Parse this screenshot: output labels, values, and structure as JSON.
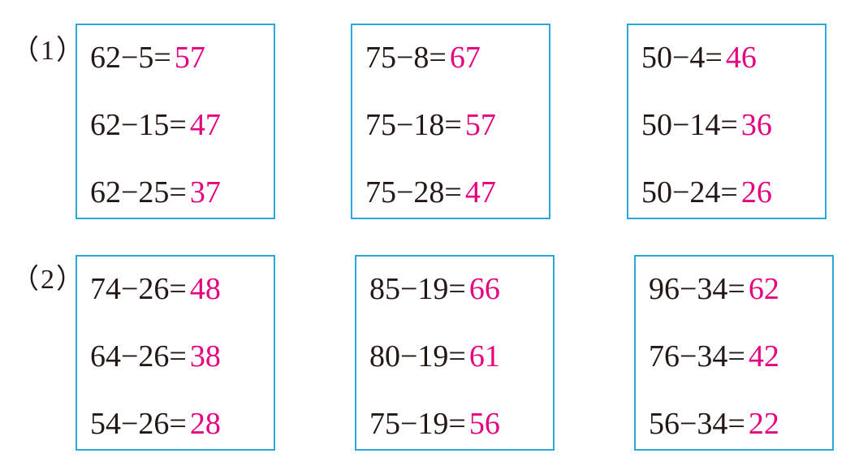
{
  "accent_colors": {
    "border": "#29a8e0",
    "answer": "#e4007f"
  },
  "groups": [
    {
      "label": "（1）",
      "boxes": [
        {
          "items": [
            {
              "q": "62−5=",
              "a": "57"
            },
            {
              "q": "62−15=",
              "a": "47"
            },
            {
              "q": "62−25=",
              "a": "37"
            }
          ]
        },
        {
          "items": [
            {
              "q": "75−8=",
              "a": "67"
            },
            {
              "q": "75−18=",
              "a": "57"
            },
            {
              "q": "75−28=",
              "a": "47"
            }
          ]
        },
        {
          "items": [
            {
              "q": "50−4=",
              "a": "46"
            },
            {
              "q": "50−14=",
              "a": "36"
            },
            {
              "q": "50−24=",
              "a": "26"
            }
          ]
        }
      ]
    },
    {
      "label": "（2）",
      "boxes": [
        {
          "items": [
            {
              "q": "74−26=",
              "a": "48"
            },
            {
              "q": "64−26=",
              "a": "38"
            },
            {
              "q": "54−26=",
              "a": "28"
            }
          ]
        },
        {
          "items": [
            {
              "q": "85−19=",
              "a": "66"
            },
            {
              "q": "80−19=",
              "a": "61"
            },
            {
              "q": "75−19=",
              "a": "56"
            }
          ]
        },
        {
          "items": [
            {
              "q": "96−34=",
              "a": "62"
            },
            {
              "q": "76−34=",
              "a": "42"
            },
            {
              "q": "56−34=",
              "a": "22"
            }
          ]
        }
      ]
    }
  ]
}
